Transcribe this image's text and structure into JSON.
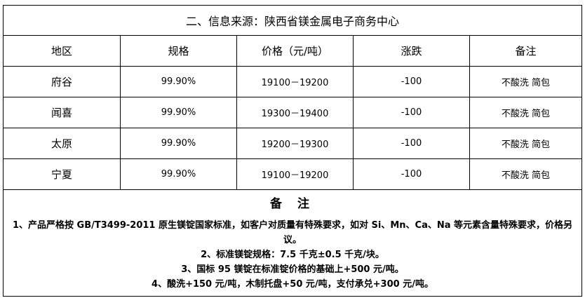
{
  "title": "二、信息来源：陕西省镁金属电子商务中心",
  "headers": [
    "地区",
    "规格",
    "价格（元/吨）",
    "涨跌",
    "备注"
  ],
  "rows": [
    {
      "region": "府谷",
      "spec": "99.90%",
      "price": "19100－19200",
      "change": "-100",
      "remark": "不酸洗  简包"
    },
    {
      "region": "闻喜",
      "spec": "99.90%",
      "price": "19300－19400",
      "change": "-100",
      "remark": "不酸洗  简包"
    },
    {
      "region": "太原",
      "spec": "99.90%",
      "price": "19200－19300",
      "change": "-100",
      "remark": "不酸洗  简包"
    },
    {
      "region": "宁夏",
      "spec": "99.90%",
      "price": "19100－19200",
      "change": "-100",
      "remark": "不酸洗  简包"
    }
  ],
  "notes": {
    "title": "备 注",
    "items": [
      "1、产品严格按 GB/T3499-2011 原生镁锭国家标准，如客户对质量有特殊要求，如对 Si、Mn、Ca、Na 等元素含量特殊要求，价格另议。",
      "2、标准镁锭规格：7.5 千克±0.5 千克/块。",
      "3、国标 95 镁锭在标准锭价格的基础上+500 元/吨。",
      "4、酸洗+150 元/吨，木制托盘+50 元/吨，支付承兑+300 元/吨。"
    ]
  }
}
